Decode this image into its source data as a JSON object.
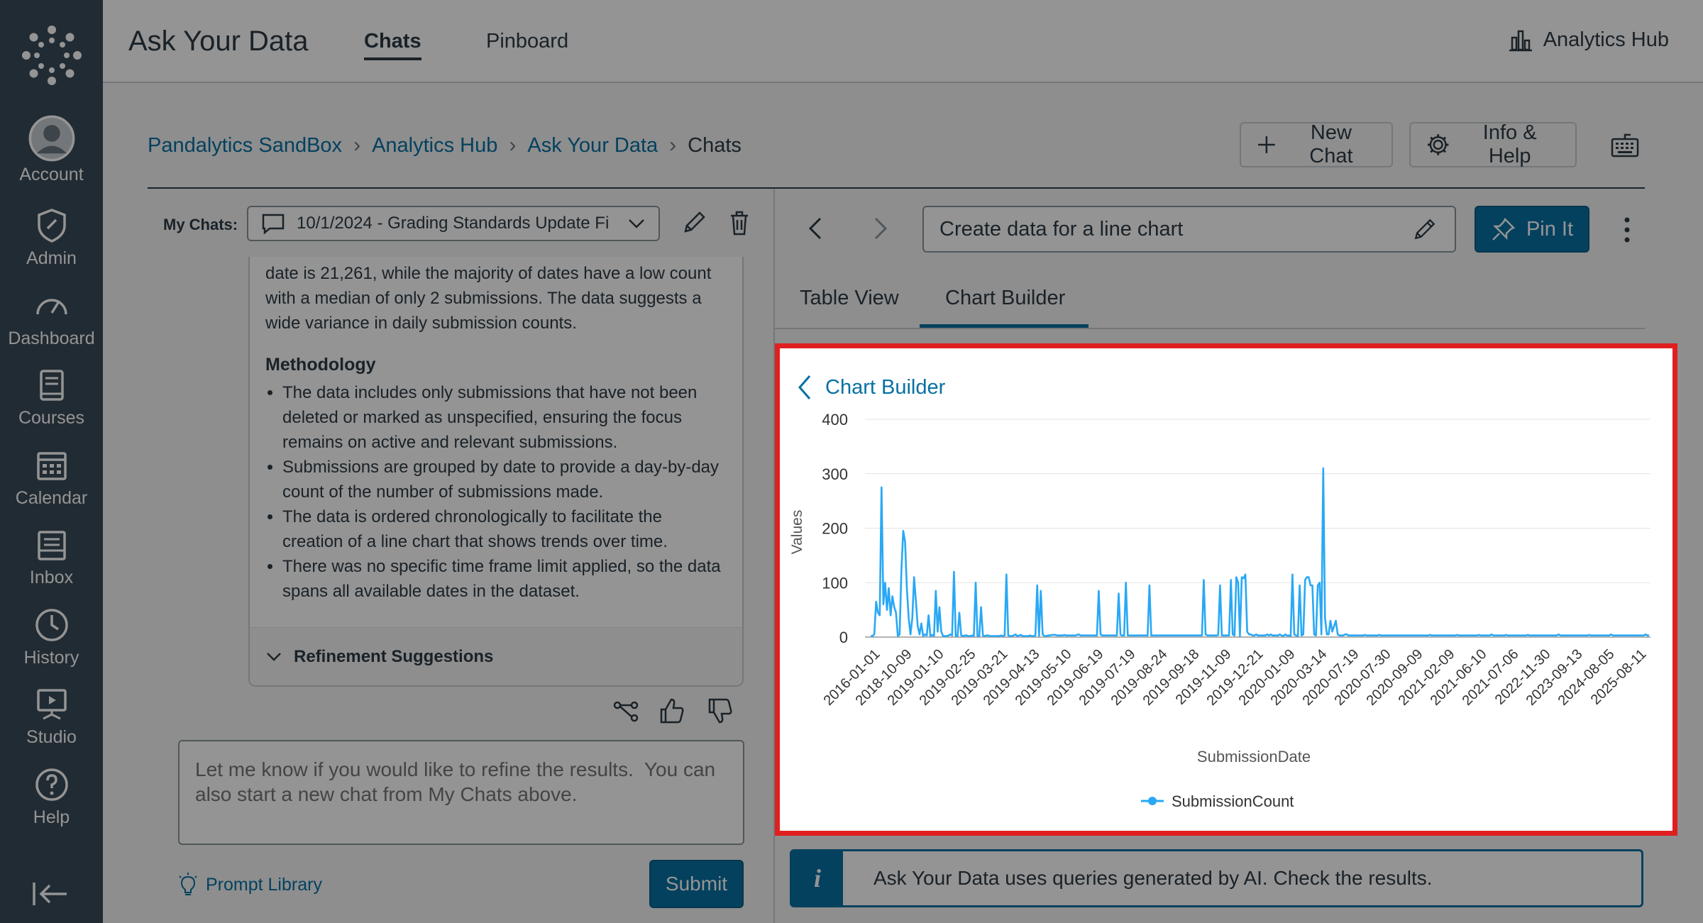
{
  "global_nav": {
    "items": [
      {
        "label": "Account",
        "icon": "account-icon"
      },
      {
        "label": "Admin",
        "icon": "shield-icon"
      },
      {
        "label": "Dashboard",
        "icon": "dashboard-icon"
      },
      {
        "label": "Courses",
        "icon": "book-icon"
      },
      {
        "label": "Calendar",
        "icon": "calendar-icon"
      },
      {
        "label": "Inbox",
        "icon": "inbox-icon"
      },
      {
        "label": "History",
        "icon": "clock-icon"
      },
      {
        "label": "Studio",
        "icon": "studio-icon"
      },
      {
        "label": "Help",
        "icon": "help-icon"
      }
    ]
  },
  "header": {
    "title": "Ask Your Data",
    "tabs": [
      {
        "label": "Chats",
        "active": true
      },
      {
        "label": "Pinboard",
        "active": false
      }
    ],
    "hub_link": "Analytics Hub"
  },
  "breadcrumb": {
    "items": [
      "Pandalytics SandBox",
      "Analytics Hub",
      "Ask Your Data"
    ],
    "current": "Chats"
  },
  "actions": {
    "new_chat": "New Chat",
    "info_help": "Info & Help"
  },
  "left_panel": {
    "my_chats_label": "My Chats:",
    "selected_chat": "10/1/2024 - Grading Standards Update Fi",
    "answer": {
      "intro": "date is 21,261, while the majority of dates have a low count with a median of only 2 submissions. The data suggests a wide variance in daily submission counts.",
      "methodology_heading": "Methodology",
      "methodology": [
        "The data includes only submissions that have not been deleted or marked as unspecified, ensuring the focus remains on active and relevant submissions.",
        "Submissions are grouped by date to provide a day-by-day count of the number of submissions made.",
        "The data is ordered chronologically to facilitate the creation of a line chart that shows trends over time.",
        "There was no specific time frame limit applied, so the data spans all available dates in the dataset."
      ],
      "refinement": "Refinement Suggestions"
    },
    "prompt_placeholder": "Let me know if you would like to refine the results.  You can also start a new chat from My Chats above.",
    "prompt_library": "Prompt Library",
    "submit": "Submit"
  },
  "right_panel": {
    "query_title": "Create data for a line chart",
    "pin_label": "Pin It",
    "tabs": [
      {
        "label": "Table View",
        "active": false
      },
      {
        "label": "Chart Builder",
        "active": true
      }
    ],
    "chart_builder_back": "Chart Builder",
    "info_text": "Ask Your Data uses queries generated by AI. Check the results."
  },
  "colors": {
    "nav_bg": "#394b58",
    "link": "#0770a3",
    "line": "#29a8f5",
    "highlight": "#e02020"
  },
  "chart_data": {
    "type": "line",
    "xlabel": "SubmissionDate",
    "ylabel": "Values",
    "ylim": [
      0,
      400
    ],
    "yticks": [
      0,
      100,
      200,
      300,
      400
    ],
    "grid": true,
    "legend_position": "bottom",
    "x_tick_labels": [
      "2016-01-01",
      "2018-10-09",
      "2019-01-10",
      "2019-02-25",
      "2019-03-21",
      "2019-04-13",
      "2019-05-10",
      "2019-06-19",
      "2019-07-19",
      "2019-08-24",
      "2019-09-18",
      "2019-11-09",
      "2019-12-21",
      "2020-01-09",
      "2020-03-14",
      "2020-07-19",
      "2020-07-30",
      "2020-09-09",
      "2021-02-09",
      "2021-06-10",
      "2021-07-06",
      "2022-11-30",
      "2023-09-13",
      "2024-08-05",
      "2025-08-11"
    ],
    "series": [
      {
        "name": "SubmissionCount",
        "values": [
          2,
          2,
          5,
          65,
          45,
          40,
          275,
          60,
          100,
          50,
          90,
          40,
          75,
          55,
          45,
          2,
          5,
          125,
          195,
          175,
          90,
          35,
          5,
          35,
          110,
          65,
          20,
          5,
          25,
          2,
          5,
          3,
          40,
          2,
          4,
          2,
          85,
          10,
          55,
          10,
          2,
          2,
          2,
          3,
          5,
          3,
          120,
          2,
          2,
          45,
          3,
          2,
          3,
          3,
          2,
          2,
          3,
          2,
          100,
          2,
          2,
          55,
          3,
          2,
          3,
          3,
          2,
          2,
          2,
          2,
          2,
          2,
          3,
          2,
          3,
          115,
          3,
          2,
          2,
          3,
          5,
          2,
          3,
          4,
          2,
          2,
          2,
          2,
          3,
          2,
          2,
          3,
          95,
          2,
          85,
          5,
          2,
          2,
          3,
          3,
          4,
          4,
          4,
          3,
          3,
          3,
          3,
          4,
          3,
          3,
          3,
          3,
          3,
          3,
          4,
          5,
          3,
          3,
          3,
          3,
          3,
          3,
          3,
          3,
          3,
          3,
          85,
          5,
          3,
          3,
          3,
          3,
          3,
          3,
          3,
          3,
          3,
          80,
          4,
          3,
          3,
          100,
          3,
          3,
          3,
          3,
          3,
          3,
          3,
          3,
          3,
          3,
          3,
          3,
          95,
          3,
          3,
          3,
          3,
          3,
          3,
          3,
          3,
          3,
          3,
          3,
          3,
          3,
          3,
          3,
          3,
          3,
          3,
          3,
          3,
          3,
          3,
          3,
          3,
          3,
          3,
          3,
          3,
          3,
          105,
          5,
          3,
          3,
          3,
          3,
          3,
          3,
          4,
          95,
          3,
          3,
          3,
          3,
          3,
          105,
          5,
          3,
          110,
          100,
          2,
          110,
          108,
          115,
          10,
          5,
          5,
          3,
          3,
          5,
          3,
          3,
          3,
          3,
          3,
          5,
          3,
          5,
          3,
          3,
          3,
          3,
          5,
          3,
          2,
          5,
          3,
          3,
          2,
          115,
          5,
          3,
          2,
          95,
          3,
          5,
          105,
          110,
          110,
          95,
          95,
          5,
          3,
          95,
          100,
          5,
          310,
          35,
          5,
          5,
          30,
          10,
          20,
          30,
          5,
          3,
          3,
          3,
          5,
          5,
          3,
          3,
          3,
          3,
          3,
          3,
          3,
          3,
          3,
          4,
          3,
          3,
          3,
          3,
          3,
          3,
          3,
          4,
          3,
          3,
          3,
          3,
          3,
          3,
          3,
          3,
          3,
          3,
          3,
          3,
          3,
          3,
          3,
          3,
          3,
          3,
          3,
          3,
          3,
          3,
          3,
          3,
          3,
          3,
          3,
          4,
          3,
          3,
          3,
          3,
          3,
          3,
          3,
          3,
          3,
          3,
          3,
          3,
          3,
          3,
          4,
          3,
          3,
          3,
          3,
          3,
          3,
          3,
          3,
          3,
          3,
          3,
          4,
          3,
          3,
          3,
          3,
          3,
          3,
          5,
          3,
          3,
          3,
          3,
          3,
          3,
          3,
          4,
          3,
          3,
          3,
          3,
          3,
          3,
          3,
          3,
          3,
          3,
          3,
          4,
          3,
          3,
          3,
          3,
          3,
          3,
          3,
          3,
          3,
          3,
          3,
          3,
          3,
          3,
          3,
          3,
          5,
          3,
          3,
          3,
          3,
          3,
          3,
          3,
          3,
          3,
          3,
          3,
          3,
          3,
          3,
          3,
          3,
          4,
          3,
          3,
          3,
          3,
          3,
          3,
          3,
          3,
          3,
          3,
          3,
          5,
          3,
          3,
          3,
          3,
          3,
          3,
          3,
          3,
          3,
          3,
          3,
          3,
          3,
          3,
          3,
          3,
          3,
          3,
          5,
          3,
          3
        ]
      }
    ]
  }
}
